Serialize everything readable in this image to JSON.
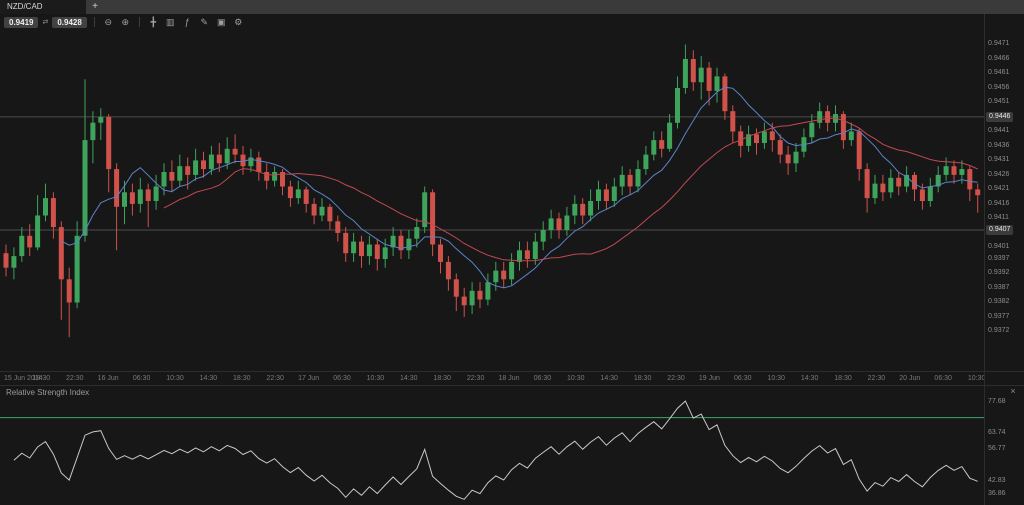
{
  "window": {
    "tab_title": "NZD/CAD",
    "new_tab_label": "+"
  },
  "toolbar": {
    "sell_price": "0.9419",
    "buy_price": "0.9428",
    "spread_glyph": "⇄",
    "icons": [
      {
        "name": "zoom-out-icon",
        "glyph": "⊖"
      },
      {
        "name": "zoom-in-icon",
        "glyph": "⊕"
      },
      {
        "name": "crosshair-icon",
        "glyph": "╋"
      },
      {
        "name": "chart-type-icon",
        "glyph": "▥"
      },
      {
        "name": "indicator-icon",
        "glyph": "ƒ"
      },
      {
        "name": "drawing-tools-icon",
        "glyph": "✎"
      },
      {
        "name": "snapshot-icon",
        "glyph": "▣"
      },
      {
        "name": "settings-icon",
        "glyph": "⚙"
      }
    ]
  },
  "rsi_panel": {
    "title": "Relative Strength Index",
    "close_glyph": "×"
  },
  "chart_data": {
    "type": "candlestick",
    "symbol": "NZD/CAD",
    "price_range": [
      0.9358,
      0.9476
    ],
    "colors": {
      "candle_up": "#3fa45b",
      "candle_down": "#d0524a",
      "ma_fast": "#5b84c9",
      "ma_slow": "#c14953",
      "rsi_line": "#c8c8c8",
      "rsi_level": "#3da56b",
      "price_line": "#4d4d4d"
    },
    "price_lines": [
      {
        "value": 0.9446,
        "label": "0.9446"
      },
      {
        "value": 0.9407,
        "label": "0.9407"
      }
    ],
    "price_axis_labels": [
      "0.9471",
      "0.9466",
      "0.9461",
      "0.9456",
      "0.9451",
      "0.9441",
      "0.9436",
      "0.9431",
      "0.9426",
      "0.9421",
      "0.9416",
      "0.9411",
      "0.9401",
      "0.9397",
      "0.9392",
      "0.9387",
      "0.9382",
      "0.9377",
      "0.9372"
    ],
    "time_axis_labels": [
      "15 Jun 2014",
      "18:30",
      "22:30",
      "16 Jun",
      "06:30",
      "10:30",
      "14:30",
      "18:30",
      "22:30",
      "17 Jun",
      "06:30",
      "10:30",
      "14:30",
      "18:30",
      "22:30",
      "18 Jun",
      "06:30",
      "10:30",
      "14:30",
      "18:30",
      "22:30",
      "19 Jun",
      "06:30",
      "10:30",
      "14:30",
      "18:30",
      "22:30",
      "20 Jun",
      "06:30",
      "10:30"
    ],
    "indicators": {
      "moving_averages": [
        {
          "period": 8,
          "color": "#5b84c9"
        },
        {
          "period": 21,
          "color": "#c14953"
        }
      ],
      "rsi": {
        "period": 14,
        "range": [
          33,
          82
        ],
        "level": 70.71,
        "axis_labels": [
          "77.68",
          "63.74",
          "56.77",
          "42.83",
          "36.86"
        ]
      }
    },
    "candles": [
      [
        0.9399,
        0.9402,
        0.9391,
        0.9394
      ],
      [
        0.9394,
        0.9401,
        0.939,
        0.9398
      ],
      [
        0.9398,
        0.9408,
        0.9396,
        0.9405
      ],
      [
        0.9405,
        0.9409,
        0.9398,
        0.9401
      ],
      [
        0.9401,
        0.9419,
        0.94,
        0.9412
      ],
      [
        0.9412,
        0.9423,
        0.941,
        0.9418
      ],
      [
        0.9418,
        0.942,
        0.9404,
        0.9408
      ],
      [
        0.9408,
        0.941,
        0.9376,
        0.939
      ],
      [
        0.939,
        0.9394,
        0.937,
        0.9382
      ],
      [
        0.9382,
        0.941,
        0.938,
        0.9405
      ],
      [
        0.9405,
        0.9459,
        0.9403,
        0.9438
      ],
      [
        0.9438,
        0.9448,
        0.943,
        0.9444
      ],
      [
        0.9444,
        0.9449,
        0.9438,
        0.9446
      ],
      [
        0.9446,
        0.9447,
        0.942,
        0.9428
      ],
      [
        0.9428,
        0.943,
        0.94,
        0.9415
      ],
      [
        0.9415,
        0.9424,
        0.9409,
        0.942
      ],
      [
        0.942,
        0.9423,
        0.9412,
        0.9416
      ],
      [
        0.9416,
        0.9425,
        0.9413,
        0.9421
      ],
      [
        0.9421,
        0.9423,
        0.9408,
        0.9417
      ],
      [
        0.9417,
        0.9426,
        0.9414,
        0.9422
      ],
      [
        0.9422,
        0.943,
        0.9419,
        0.9427
      ],
      [
        0.9427,
        0.9431,
        0.942,
        0.9424
      ],
      [
        0.9424,
        0.9433,
        0.9422,
        0.9429
      ],
      [
        0.9429,
        0.9432,
        0.9421,
        0.9426
      ],
      [
        0.9426,
        0.9435,
        0.9424,
        0.9431
      ],
      [
        0.9431,
        0.9434,
        0.9425,
        0.9428
      ],
      [
        0.9428,
        0.9436,
        0.9426,
        0.9433
      ],
      [
        0.9433,
        0.9437,
        0.9427,
        0.943
      ],
      [
        0.943,
        0.9439,
        0.9428,
        0.9435
      ],
      [
        0.9435,
        0.944,
        0.943,
        0.9433
      ],
      [
        0.9433,
        0.9436,
        0.9426,
        0.9429
      ],
      [
        0.9429,
        0.9435,
        0.9427,
        0.9432
      ],
      [
        0.9432,
        0.9434,
        0.9424,
        0.9427
      ],
      [
        0.9427,
        0.943,
        0.9421,
        0.9424
      ],
      [
        0.9424,
        0.9429,
        0.9422,
        0.9427
      ],
      [
        0.9427,
        0.9428,
        0.9419,
        0.9422
      ],
      [
        0.9422,
        0.9424,
        0.9415,
        0.9418
      ],
      [
        0.9418,
        0.9424,
        0.9416,
        0.9421
      ],
      [
        0.9421,
        0.9422,
        0.9413,
        0.9416
      ],
      [
        0.9416,
        0.9418,
        0.9409,
        0.9412
      ],
      [
        0.9412,
        0.9418,
        0.941,
        0.9415
      ],
      [
        0.9415,
        0.9416,
        0.9407,
        0.941
      ],
      [
        0.941,
        0.9412,
        0.9403,
        0.9406
      ],
      [
        0.9406,
        0.9408,
        0.9396,
        0.9399
      ],
      [
        0.9399,
        0.9406,
        0.9396,
        0.9403
      ],
      [
        0.9403,
        0.9405,
        0.9394,
        0.9398
      ],
      [
        0.9398,
        0.9405,
        0.9395,
        0.9402
      ],
      [
        0.9402,
        0.9404,
        0.9393,
        0.9397
      ],
      [
        0.9397,
        0.9404,
        0.9394,
        0.9401
      ],
      [
        0.9401,
        0.9408,
        0.9398,
        0.9405
      ],
      [
        0.9405,
        0.9407,
        0.9397,
        0.94
      ],
      [
        0.94,
        0.9407,
        0.9397,
        0.9404
      ],
      [
        0.9404,
        0.9411,
        0.9401,
        0.9408
      ],
      [
        0.9408,
        0.9422,
        0.9406,
        0.942
      ],
      [
        0.942,
        0.9421,
        0.9398,
        0.9402
      ],
      [
        0.9402,
        0.9404,
        0.9392,
        0.9396
      ],
      [
        0.9396,
        0.9398,
        0.9386,
        0.939
      ],
      [
        0.939,
        0.9392,
        0.9379,
        0.9384
      ],
      [
        0.9384,
        0.9387,
        0.9377,
        0.9381
      ],
      [
        0.9381,
        0.9389,
        0.9378,
        0.9386
      ],
      [
        0.9386,
        0.9389,
        0.938,
        0.9383
      ],
      [
        0.9383,
        0.9392,
        0.9381,
        0.9389
      ],
      [
        0.9389,
        0.9396,
        0.9386,
        0.9393
      ],
      [
        0.9393,
        0.9396,
        0.9387,
        0.939
      ],
      [
        0.939,
        0.9399,
        0.9388,
        0.9396
      ],
      [
        0.9396,
        0.9403,
        0.9393,
        0.94
      ],
      [
        0.94,
        0.9403,
        0.9394,
        0.9397
      ],
      [
        0.9397,
        0.9406,
        0.9395,
        0.9403
      ],
      [
        0.9403,
        0.941,
        0.94,
        0.9407
      ],
      [
        0.9407,
        0.9414,
        0.9404,
        0.9411
      ],
      [
        0.9411,
        0.9413,
        0.9404,
        0.9407
      ],
      [
        0.9407,
        0.9415,
        0.9405,
        0.9412
      ],
      [
        0.9412,
        0.9419,
        0.9409,
        0.9416
      ],
      [
        0.9416,
        0.9418,
        0.9409,
        0.9412
      ],
      [
        0.9412,
        0.9421,
        0.941,
        0.9417
      ],
      [
        0.9417,
        0.9424,
        0.9414,
        0.9421
      ],
      [
        0.9421,
        0.9423,
        0.9414,
        0.9417
      ],
      [
        0.9417,
        0.9425,
        0.9415,
        0.9422
      ],
      [
        0.9422,
        0.9429,
        0.9419,
        0.9426
      ],
      [
        0.9426,
        0.9428,
        0.9419,
        0.9422
      ],
      [
        0.9422,
        0.9431,
        0.942,
        0.9428
      ],
      [
        0.9428,
        0.9436,
        0.9426,
        0.9433
      ],
      [
        0.9433,
        0.9441,
        0.9431,
        0.9438
      ],
      [
        0.9438,
        0.9441,
        0.9432,
        0.9435
      ],
      [
        0.9435,
        0.9447,
        0.9434,
        0.9444
      ],
      [
        0.9444,
        0.946,
        0.9442,
        0.9456
      ],
      [
        0.9456,
        0.9471,
        0.9454,
        0.9466
      ],
      [
        0.9466,
        0.9469,
        0.9455,
        0.9458
      ],
      [
        0.9458,
        0.9467,
        0.9452,
        0.9463
      ],
      [
        0.9463,
        0.9465,
        0.945,
        0.9455
      ],
      [
        0.9455,
        0.9463,
        0.9451,
        0.946
      ],
      [
        0.946,
        0.9461,
        0.9445,
        0.9448
      ],
      [
        0.9448,
        0.945,
        0.9437,
        0.9441
      ],
      [
        0.9441,
        0.9443,
        0.9432,
        0.9436
      ],
      [
        0.9436,
        0.9443,
        0.9434,
        0.944
      ],
      [
        0.944,
        0.9442,
        0.9433,
        0.9437
      ],
      [
        0.9437,
        0.9444,
        0.9435,
        0.9441
      ],
      [
        0.9441,
        0.9444,
        0.9434,
        0.9438
      ],
      [
        0.9438,
        0.944,
        0.943,
        0.9433
      ],
      [
        0.9433,
        0.9436,
        0.9426,
        0.943
      ],
      [
        0.943,
        0.9437,
        0.9427,
        0.9434
      ],
      [
        0.9434,
        0.9442,
        0.9432,
        0.9439
      ],
      [
        0.9439,
        0.9447,
        0.9437,
        0.9444
      ],
      [
        0.9444,
        0.9451,
        0.9442,
        0.9448
      ],
      [
        0.9448,
        0.945,
        0.9441,
        0.9444
      ],
      [
        0.9444,
        0.945,
        0.9441,
        0.9447
      ],
      [
        0.9447,
        0.9448,
        0.9435,
        0.9438
      ],
      [
        0.9438,
        0.9444,
        0.9436,
        0.9441
      ],
      [
        0.9441,
        0.9442,
        0.9424,
        0.9428
      ],
      [
        0.9428,
        0.943,
        0.9413,
        0.9418
      ],
      [
        0.9418,
        0.9426,
        0.9416,
        0.9423
      ],
      [
        0.9423,
        0.9426,
        0.9417,
        0.942
      ],
      [
        0.942,
        0.9428,
        0.9418,
        0.9425
      ],
      [
        0.9425,
        0.9427,
        0.9419,
        0.9422
      ],
      [
        0.9422,
        0.9429,
        0.942,
        0.9426
      ],
      [
        0.9426,
        0.9427,
        0.9417,
        0.9421
      ],
      [
        0.9421,
        0.9423,
        0.9414,
        0.9417
      ],
      [
        0.9417,
        0.9425,
        0.9415,
        0.9422
      ],
      [
        0.9422,
        0.9429,
        0.942,
        0.9426
      ],
      [
        0.9426,
        0.9432,
        0.9424,
        0.9429
      ],
      [
        0.9429,
        0.9431,
        0.9423,
        0.9426
      ],
      [
        0.9426,
        0.9431,
        0.9423,
        0.9428
      ],
      [
        0.9428,
        0.9429,
        0.9417,
        0.9421
      ],
      [
        0.9421,
        0.9423,
        0.9413,
        0.9419
      ]
    ]
  }
}
